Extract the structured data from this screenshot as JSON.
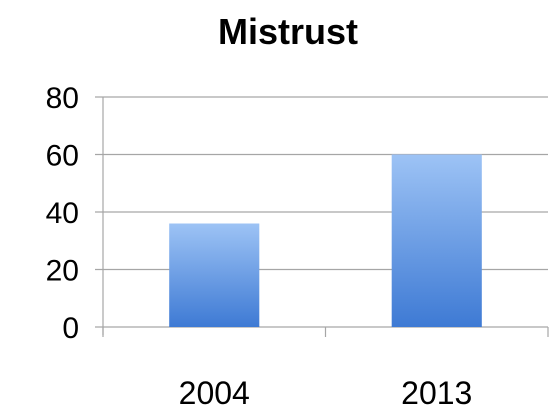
{
  "chart_data": {
    "type": "bar",
    "title": "Mistrust",
    "categories": [
      "2004",
      "2013"
    ],
    "values": [
      36,
      60
    ],
    "ylim": [
      0,
      80
    ],
    "yticks": [
      0,
      20,
      40,
      60,
      80
    ],
    "grid": true,
    "bar_color_top": "#9dc3f5",
    "bar_color_bottom": "#3e7ad4",
    "gridline_color": "#a6a6a6"
  }
}
